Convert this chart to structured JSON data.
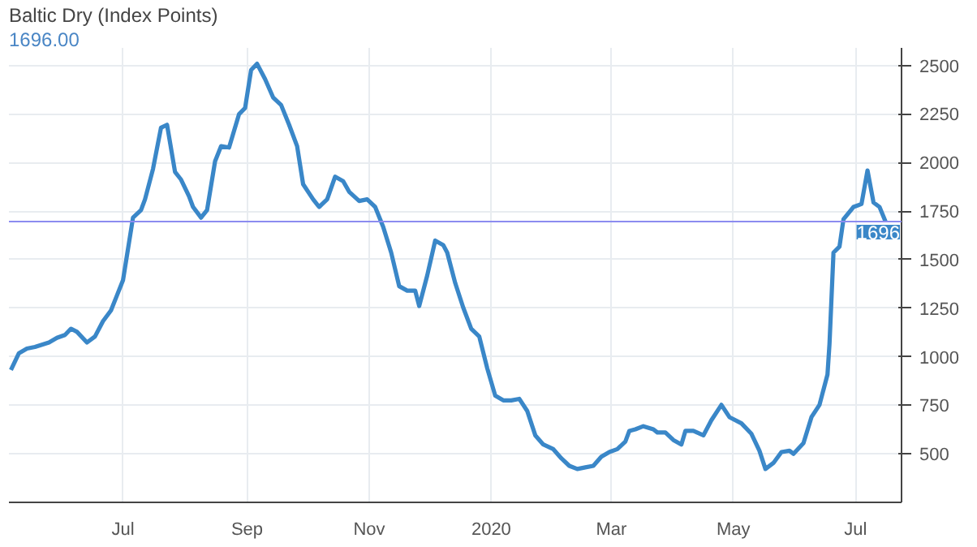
{
  "chart_data": {
    "type": "line",
    "title": "Baltic Dry (Index Points)",
    "subtitle": "1696.00",
    "x": [
      "2019-05-06",
      "2019-05-10",
      "2019-05-14",
      "2019-05-18",
      "2019-05-25",
      "2019-05-29",
      "2019-06-02",
      "2019-06-05",
      "2019-06-08",
      "2019-06-13",
      "2019-06-17",
      "2019-06-21",
      "2019-06-25",
      "2019-06-28",
      "2019-07-01",
      "2019-07-06",
      "2019-07-10",
      "2019-07-12",
      "2019-07-16",
      "2019-07-20",
      "2019-07-23",
      "2019-07-27",
      "2019-07-30",
      "2019-08-03",
      "2019-08-05",
      "2019-08-09",
      "2019-08-12",
      "2019-08-16",
      "2019-08-19",
      "2019-08-23",
      "2019-08-28",
      "2019-08-31",
      "2019-09-03",
      "2019-09-06",
      "2019-09-10",
      "2019-09-14",
      "2019-09-18",
      "2019-09-22",
      "2019-09-26",
      "2019-09-29",
      "2019-10-04",
      "2019-10-07",
      "2019-10-11",
      "2019-10-15",
      "2019-10-19",
      "2019-10-22",
      "2019-10-27",
      "2019-10-31",
      "2019-11-04",
      "2019-11-08",
      "2019-11-12",
      "2019-11-16",
      "2019-11-20",
      "2019-11-24",
      "2019-11-26",
      "2019-11-30",
      "2019-12-04",
      "2019-12-08",
      "2019-12-10",
      "2019-12-14",
      "2019-12-18",
      "2019-12-22",
      "2019-12-26",
      "2019-12-30",
      "2020-01-03",
      "2020-01-07",
      "2020-01-11",
      "2020-01-15",
      "2020-01-19",
      "2020-01-23",
      "2020-01-27",
      "2020-02-01",
      "2020-02-05",
      "2020-02-09",
      "2020-02-13",
      "2020-02-17",
      "2020-02-21",
      "2020-02-25",
      "2020-02-29",
      "2020-03-04",
      "2020-03-08",
      "2020-03-10",
      "2020-03-13",
      "2020-03-17",
      "2020-03-22",
      "2020-03-24",
      "2020-03-28",
      "2020-04-01",
      "2020-04-05",
      "2020-04-07",
      "2020-04-11",
      "2020-04-16",
      "2020-04-20",
      "2020-04-25",
      "2020-04-29",
      "2020-05-05",
      "2020-05-10",
      "2020-05-14",
      "2020-05-17",
      "2020-05-21",
      "2020-05-25",
      "2020-05-29",
      "2020-05-31",
      "2020-06-05",
      "2020-06-09",
      "2020-06-13",
      "2020-06-17",
      "2020-06-18",
      "2020-06-20",
      "2020-06-23",
      "2020-06-25",
      "2020-06-30",
      "2020-07-04",
      "2020-07-07",
      "2020-07-10",
      "2020-07-13",
      "2020-07-16"
    ],
    "series": [
      {
        "color": "#3a87c8",
        "values": [
          932,
          1018,
          1042,
          1050,
          1073,
          1097,
          1112,
          1144,
          1128,
          1073,
          1104,
          1183,
          1238,
          1316,
          1394,
          1716,
          1755,
          1810,
          1967,
          2179,
          2194,
          1951,
          1912,
          1826,
          1771,
          1716,
          1755,
          2006,
          2084,
          2077,
          2249,
          2280,
          2476,
          2508,
          2429,
          2335,
          2296,
          2194,
          2084,
          1888,
          1810,
          1771,
          1810,
          1927,
          1904,
          1849,
          1802,
          1810,
          1771,
          1669,
          1536,
          1363,
          1340,
          1340,
          1261,
          1418,
          1598,
          1575,
          1536,
          1379,
          1253,
          1144,
          1104,
          940,
          799,
          775,
          775,
          783,
          720,
          595,
          548,
          524,
          477,
          438,
          422,
          430,
          438,
          485,
          509,
          524,
          563,
          618,
          626,
          642,
          626,
          610,
          610,
          571,
          548,
          618,
          618,
          595,
          673,
          752,
          689,
          657,
          603,
          516,
          422,
          453,
          509,
          516,
          500,
          555,
          689,
          752,
          908,
          1065,
          1536,
          1567,
          1708,
          1771,
          1786,
          1959,
          1794,
          1771,
          1696
        ]
      }
    ],
    "xlim": [
      "2019-05-05",
      "2020-07-24"
    ],
    "xticks": [
      {
        "value": "2019-07-01",
        "label": "Jul"
      },
      {
        "value": "2019-09-01",
        "label": "Sep"
      },
      {
        "value": "2019-11-01",
        "label": "Nov"
      },
      {
        "value": "2020-01-01",
        "label": "2020"
      },
      {
        "value": "2020-03-01",
        "label": "Mar"
      },
      {
        "value": "2020-05-01",
        "label": "May"
      },
      {
        "value": "2020-07-01",
        "label": "Jul"
      }
    ],
    "ylim": [
      250,
      2590
    ],
    "yticks": [
      500,
      750,
      1000,
      1250,
      1500,
      1750,
      2000,
      2250,
      2500
    ],
    "ref_lines": [
      {
        "axis": "y",
        "value": 1696,
        "label": "1696",
        "color": "#8c8cf0"
      }
    ],
    "grid": true,
    "marker": "none",
    "line_style": "solid"
  }
}
